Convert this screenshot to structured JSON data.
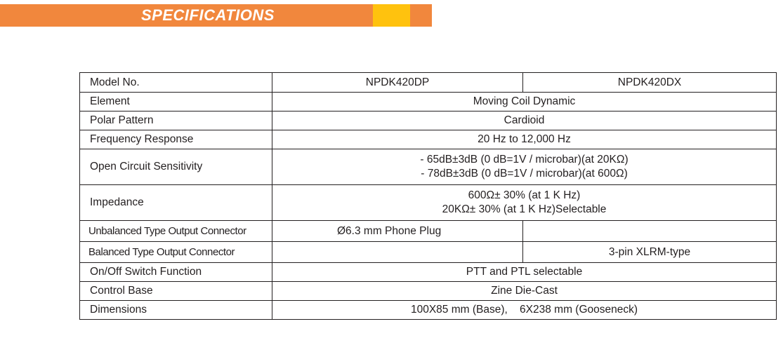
{
  "header": {
    "title": "SPECIFICATIONS",
    "colors": {
      "bar": "#f1873d",
      "accent": "#ffc20e",
      "text": "#ffffff"
    }
  },
  "table": {
    "model_label": "Model No.",
    "models": [
      "NPDK420DP",
      "NPDK420DX"
    ],
    "element": {
      "label": "Element",
      "value": "Moving Coil Dynamic"
    },
    "polar_pattern": {
      "label": "Polar Pattern",
      "value": "Cardioid"
    },
    "frequency_response": {
      "label": "Frequency Response",
      "value": "20 Hz to 12,000 Hz"
    },
    "sensitivity": {
      "label": "Open Circuit Sensitivity",
      "lines": [
        "- 65dB±3dB (0 dB=1V / microbar)(at 20KΩ)",
        "- 78dB±3dB (0 dB=1V / microbar)(at 600Ω)"
      ]
    },
    "impedance": {
      "label": "Impedance",
      "lines": [
        "600Ω± 30% (at 1 K Hz)",
        "20KΩ± 30% (at 1 K Hz)Selectable"
      ]
    },
    "unbalanced_connector": {
      "label": "Unbalanced Type Output Connector",
      "dp": "Ø6.3 mm Phone Plug",
      "dx": ""
    },
    "balanced_connector": {
      "label": "Balanced Type Output Connector",
      "dp": "",
      "dx": "3-pin XLRM-type"
    },
    "switch": {
      "label": "On/Off Switch Function",
      "value": "PTT and PTL selectable"
    },
    "control_base": {
      "label": "Control Base",
      "value": "Zine Die-Cast"
    },
    "dimensions": {
      "label": "Dimensions",
      "value": "100X85 mm (Base),    6X238 mm (Gooseneck)"
    }
  }
}
